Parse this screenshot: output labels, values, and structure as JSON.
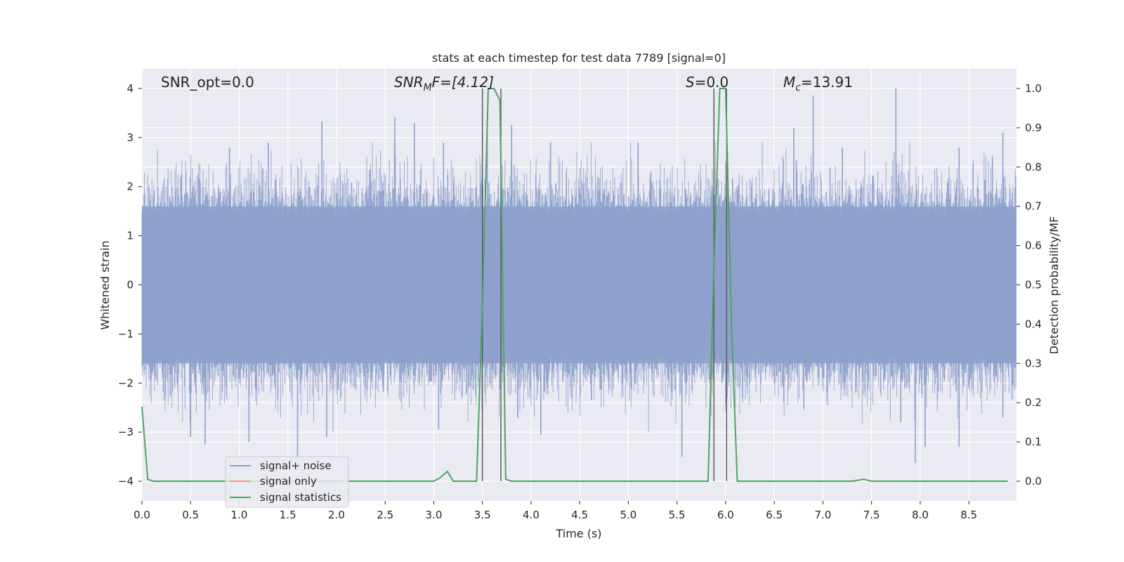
{
  "chart_data": {
    "type": "line",
    "title": "stats at each timestep for test data 7789 [signal=0]",
    "xlabel": "Time (s)",
    "ylabel_left": "Whitened strain",
    "ylabel_right": "Detection probability/MF",
    "xlim": [
      0.0,
      8.99
    ],
    "ylim_left": [
      -4.4,
      4.4
    ],
    "ylim_right": [
      -0.05,
      1.05
    ],
    "x_ticks": [
      "0.0",
      "0.5",
      "1.0",
      "1.5",
      "2.0",
      "2.5",
      "3.0",
      "3.5",
      "4.0",
      "4.5",
      "5.0",
      "5.5",
      "6.0",
      "6.5",
      "7.0",
      "7.5",
      "8.0",
      "8.5"
    ],
    "y_ticks_left": [
      "4",
      "3",
      "2",
      "1",
      "0",
      "−1",
      "−2",
      "−3",
      "−4"
    ],
    "y_ticks_right": [
      "1.0",
      "0.9",
      "0.8",
      "0.7",
      "0.6",
      "0.5",
      "0.4",
      "0.3",
      "0.2",
      "0.1",
      "0.0"
    ],
    "grid": true,
    "legend_position": "lower-left",
    "annotations": {
      "snr_opt": "SNR_opt=0.0",
      "snr_mf_main": "SNR",
      "snr_mf_sub": "M",
      "snr_mf_rest": "F=[4.12]",
      "s_italic": "S",
      "s_rest": "=0.0",
      "mc_main": "M",
      "mc_sub": "c",
      "mc_rest": "=13.91"
    },
    "series": [
      {
        "name": "signal+ noise",
        "color": "#8da0cb",
        "description_stats": {
          "core_range": [
            -1.6,
            1.6
          ],
          "max": 4.0,
          "min": -3.6
        },
        "spikes_up": [
          {
            "t": 0.4,
            "v": 2.2
          },
          {
            "t": 0.9,
            "v": 2.8
          },
          {
            "t": 1.3,
            "v": 2.9
          },
          {
            "t": 1.85,
            "v": 3.33
          },
          {
            "t": 2.6,
            "v": 3.42
          },
          {
            "t": 2.8,
            "v": 3.3
          },
          {
            "t": 3.1,
            "v": 2.9
          },
          {
            "t": 3.55,
            "v": 3.3
          },
          {
            "t": 3.8,
            "v": 3.25
          },
          {
            "t": 4.2,
            "v": 2.9
          },
          {
            "t": 5.1,
            "v": 2.9
          },
          {
            "t": 6.7,
            "v": 3.2
          },
          {
            "t": 6.9,
            "v": 3.85
          },
          {
            "t": 7.2,
            "v": 2.8
          },
          {
            "t": 7.75,
            "v": 4.0
          },
          {
            "t": 8.4,
            "v": 2.8
          },
          {
            "t": 8.85,
            "v": 3.1
          }
        ],
        "spikes_down": [
          {
            "t": 0.5,
            "v": -3.1
          },
          {
            "t": 0.65,
            "v": -3.25
          },
          {
            "t": 1.1,
            "v": -3.2
          },
          {
            "t": 1.6,
            "v": -3.5
          },
          {
            "t": 1.9,
            "v": -3.1
          },
          {
            "t": 3.05,
            "v": -2.95
          },
          {
            "t": 4.1,
            "v": -3.05
          },
          {
            "t": 5.55,
            "v": -3.5
          },
          {
            "t": 7.8,
            "v": -2.8
          },
          {
            "t": 7.95,
            "v": -3.62
          },
          {
            "t": 8.05,
            "v": -3.3
          },
          {
            "t": 8.4,
            "v": -3.3
          },
          {
            "t": 8.85,
            "v": -2.7
          }
        ]
      },
      {
        "name": "signal only",
        "color": "#e5a07a",
        "values": []
      },
      {
        "name": "signal statistics",
        "color": "#4fa365",
        "x": [
          0.0,
          0.06,
          0.12,
          0.5,
          1.0,
          2.0,
          3.0,
          3.07,
          3.14,
          3.2,
          3.44,
          3.5,
          3.56,
          3.62,
          3.68,
          3.74,
          3.8,
          4.0,
          5.0,
          5.82,
          5.88,
          5.94,
          6.0,
          6.06,
          6.12,
          6.5,
          7.0,
          7.3,
          7.42,
          7.5,
          8.0,
          8.9
        ],
        "y": [
          0.19,
          0.005,
          0.0,
          0.0,
          0.0,
          0.0,
          0.0,
          0.01,
          0.025,
          0.0,
          0.0,
          0.45,
          1.0,
          1.0,
          0.97,
          0.005,
          0.0,
          0.0,
          0.0,
          0.0,
          0.55,
          1.0,
          1.0,
          0.4,
          0.0,
          0.0,
          0.0,
          0.0,
          0.005,
          0.0,
          0.0,
          0.0
        ]
      }
    ],
    "vlines": [
      {
        "x": 3.5,
        "ymin_right": 0.0,
        "ymax_right": 1.0
      },
      {
        "x": 3.69,
        "ymin_right": 0.0,
        "ymax_right": 1.0
      },
      {
        "x": 5.88,
        "ymin_right": 0.0,
        "ymax_right": 1.0
      },
      {
        "x": 6.01,
        "ymin_right": 0.0,
        "ymax_right": 1.0
      }
    ]
  }
}
